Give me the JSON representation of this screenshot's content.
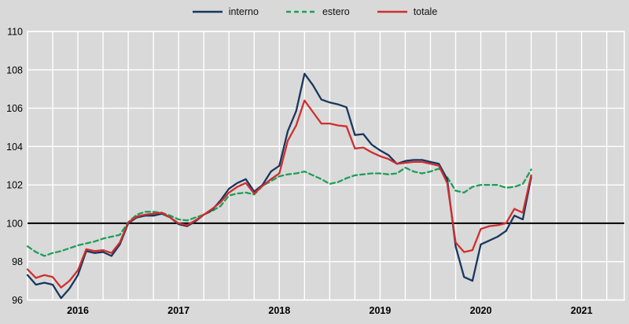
{
  "legend": {
    "items": [
      {
        "label": "interno"
      },
      {
        "label": "estero"
      },
      {
        "label": "totale"
      }
    ]
  },
  "colors": {
    "background": "#D9D9D9",
    "gridline": "#FFFFFF",
    "baseline": "#000000",
    "tick_text": "#000000",
    "interno": "#17375E",
    "estero": "#1E9E5A",
    "totale": "#D02E2E"
  },
  "chart_data": {
    "type": "line",
    "title": "",
    "xlabel": "",
    "ylabel": "",
    "frequency": "monthly",
    "x_start": "2016-01",
    "x_end": "2021-01",
    "ylim": [
      96,
      110
    ],
    "y_ticks": [
      96,
      98,
      100,
      102,
      104,
      106,
      108,
      110
    ],
    "baseline_value": 100,
    "grid": "white quarterly vertical and 2-unit horizontal gridlines on gray",
    "legend_position": "top-center",
    "x_year_labels": [
      "2016",
      "2017",
      "2018",
      "2019",
      "2020",
      "2021"
    ],
    "series": [
      {
        "name": "interno",
        "color": "#17375E",
        "dash": "solid",
        "values": [
          97.3,
          96.8,
          96.9,
          96.8,
          96.1,
          96.6,
          97.3,
          98.55,
          98.45,
          98.5,
          98.3,
          98.9,
          100.0,
          100.3,
          100.4,
          100.4,
          100.5,
          100.3,
          99.95,
          99.85,
          100.1,
          100.45,
          100.7,
          101.2,
          101.8,
          102.1,
          102.3,
          101.65,
          102.0,
          102.7,
          103.0,
          104.8,
          105.85,
          107.8,
          107.2,
          106.45,
          106.3,
          106.2,
          106.05,
          104.6,
          104.65,
          104.1,
          103.8,
          103.55,
          103.1,
          103.25,
          103.3,
          103.3,
          103.2,
          103.1,
          102.3,
          98.8,
          97.2,
          97.0,
          98.9,
          99.1,
          99.3,
          99.6,
          100.4,
          100.2,
          102.4
        ]
      },
      {
        "name": "estero",
        "color": "#1E9E5A",
        "dash": "dashed",
        "values": [
          98.8,
          98.5,
          98.3,
          98.45,
          98.55,
          98.7,
          98.85,
          98.95,
          99.05,
          99.2,
          99.3,
          99.4,
          100.05,
          100.45,
          100.6,
          100.6,
          100.55,
          100.4,
          100.2,
          100.15,
          100.3,
          100.45,
          100.65,
          100.9,
          101.45,
          101.55,
          101.6,
          101.5,
          101.95,
          102.2,
          102.45,
          102.55,
          102.6,
          102.7,
          102.5,
          102.3,
          102.05,
          102.15,
          102.35,
          102.5,
          102.55,
          102.6,
          102.6,
          102.55,
          102.6,
          102.9,
          102.7,
          102.6,
          102.7,
          102.85,
          102.4,
          101.7,
          101.6,
          101.9,
          102.0,
          102.0,
          102.0,
          101.85,
          101.9,
          102.05,
          102.8
        ]
      },
      {
        "name": "totale",
        "color": "#D02E2E",
        "dash": "solid",
        "values": [
          97.6,
          97.15,
          97.3,
          97.2,
          96.65,
          97.0,
          97.55,
          98.65,
          98.55,
          98.6,
          98.45,
          99.0,
          100.05,
          100.35,
          100.45,
          100.5,
          100.55,
          100.3,
          100.0,
          99.9,
          100.15,
          100.45,
          100.75,
          101.1,
          101.6,
          101.9,
          102.1,
          101.55,
          101.95,
          102.3,
          102.6,
          104.3,
          105.1,
          106.4,
          105.8,
          105.2,
          105.2,
          105.1,
          105.05,
          103.9,
          103.95,
          103.7,
          103.5,
          103.35,
          103.1,
          103.15,
          103.2,
          103.2,
          103.1,
          103.0,
          102.1,
          99.0,
          98.5,
          98.6,
          99.7,
          99.85,
          99.9,
          100.0,
          100.75,
          100.55,
          102.5
        ]
      }
    ]
  }
}
